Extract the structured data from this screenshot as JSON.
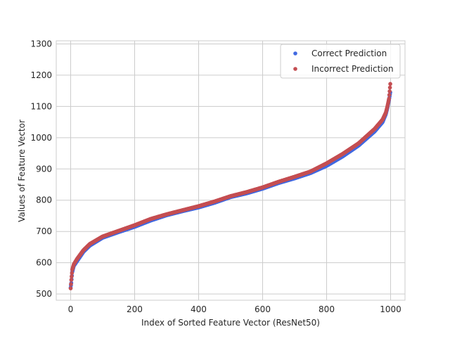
{
  "chart_data": {
    "type": "scatter",
    "title": "",
    "xlabel": "Index of Sorted Feature Vector (ResNet50)",
    "ylabel": "Values of Feature Vector",
    "xlim": [
      -45,
      1045
    ],
    "ylim": [
      480,
      1310
    ],
    "xticks": [
      0,
      200,
      400,
      600,
      800,
      1000
    ],
    "yticks": [
      500,
      600,
      700,
      800,
      900,
      1000,
      1100,
      1200,
      1300
    ],
    "grid": true,
    "legend_position": "top-right",
    "n_points": 1000,
    "curve_shape_note": "sorted feature values, sigmoid-like rise from ~520 at index 0 to ~1170 at index 999",
    "series": [
      {
        "name": "Correct Prediction",
        "color": "#4169e1",
        "key_points": [
          [
            0,
            520
          ],
          [
            2,
            535
          ],
          [
            5,
            570
          ],
          [
            10,
            590
          ],
          [
            20,
            605
          ],
          [
            40,
            635
          ],
          [
            60,
            655
          ],
          [
            100,
            680
          ],
          [
            150,
            698
          ],
          [
            200,
            715
          ],
          [
            250,
            735
          ],
          [
            300,
            752
          ],
          [
            350,
            765
          ],
          [
            400,
            777
          ],
          [
            450,
            792
          ],
          [
            500,
            810
          ],
          [
            550,
            822
          ],
          [
            600,
            837
          ],
          [
            650,
            855
          ],
          [
            700,
            870
          ],
          [
            750,
            887
          ],
          [
            800,
            910
          ],
          [
            850,
            940
          ],
          [
            900,
            975
          ],
          [
            950,
            1020
          ],
          [
            975,
            1050
          ],
          [
            985,
            1075
          ],
          [
            990,
            1095
          ],
          [
            995,
            1120
          ],
          [
            999,
            1145
          ]
        ]
      },
      {
        "name": "Incorrect Prediction",
        "color": "#c44e52",
        "key_points": [
          [
            0,
            518
          ],
          [
            2,
            545
          ],
          [
            5,
            578
          ],
          [
            10,
            595
          ],
          [
            20,
            612
          ],
          [
            40,
            640
          ],
          [
            60,
            660
          ],
          [
            100,
            684
          ],
          [
            150,
            702
          ],
          [
            200,
            720
          ],
          [
            250,
            740
          ],
          [
            300,
            755
          ],
          [
            350,
            768
          ],
          [
            400,
            781
          ],
          [
            450,
            796
          ],
          [
            500,
            813
          ],
          [
            550,
            826
          ],
          [
            600,
            841
          ],
          [
            650,
            859
          ],
          [
            700,
            875
          ],
          [
            750,
            892
          ],
          [
            800,
            918
          ],
          [
            850,
            948
          ],
          [
            900,
            982
          ],
          [
            950,
            1028
          ],
          [
            975,
            1058
          ],
          [
            985,
            1080
          ],
          [
            990,
            1100
          ],
          [
            995,
            1125
          ],
          [
            999,
            1172
          ]
        ]
      }
    ],
    "legend": [
      "Correct Prediction",
      "Incorrect Prediction"
    ]
  }
}
